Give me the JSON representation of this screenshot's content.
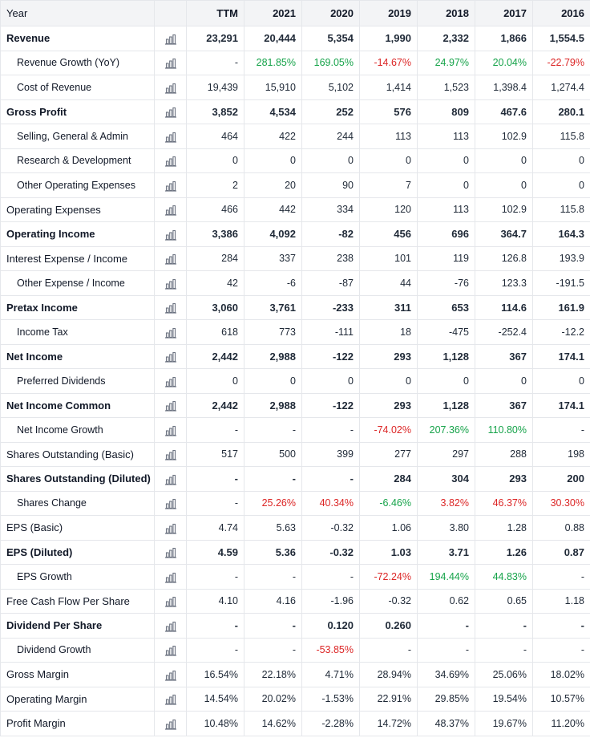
{
  "header": {
    "year_label": "Year",
    "columns": [
      "TTM",
      "2021",
      "2020",
      "2019",
      "2018",
      "2017",
      "2016"
    ]
  },
  "icon": "bar-chart-icon",
  "colors": {
    "positive": "#16a34a",
    "negative": "#dc2626"
  },
  "rows": [
    {
      "label": "Revenue",
      "bold": true,
      "indent": false,
      "values": [
        "23,291",
        "20,444",
        "5,354",
        "1,990",
        "2,332",
        "1,866",
        "1,554.5"
      ]
    },
    {
      "label": "Revenue Growth (YoY)",
      "bold": false,
      "indent": true,
      "values": [
        "-",
        "281.85%",
        "169.05%",
        "-14.67%",
        "24.97%",
        "20.04%",
        "-22.79%"
      ]
    },
    {
      "label": "Cost of Revenue",
      "bold": false,
      "indent": true,
      "values": [
        "19,439",
        "15,910",
        "5,102",
        "1,414",
        "1,523",
        "1,398.4",
        "1,274.4"
      ]
    },
    {
      "label": "Gross Profit",
      "bold": true,
      "indent": false,
      "values": [
        "3,852",
        "4,534",
        "252",
        "576",
        "809",
        "467.6",
        "280.1"
      ]
    },
    {
      "label": "Selling, General & Admin",
      "bold": false,
      "indent": true,
      "values": [
        "464",
        "422",
        "244",
        "113",
        "113",
        "102.9",
        "115.8"
      ]
    },
    {
      "label": "Research & Development",
      "bold": false,
      "indent": true,
      "values": [
        "0",
        "0",
        "0",
        "0",
        "0",
        "0",
        "0"
      ]
    },
    {
      "label": "Other Operating Expenses",
      "bold": false,
      "indent": true,
      "values": [
        "2",
        "20",
        "90",
        "7",
        "0",
        "0",
        "0"
      ]
    },
    {
      "label": "Operating Expenses",
      "bold": false,
      "indent": false,
      "values": [
        "466",
        "442",
        "334",
        "120",
        "113",
        "102.9",
        "115.8"
      ]
    },
    {
      "label": "Operating Income",
      "bold": true,
      "indent": false,
      "values": [
        "3,386",
        "4,092",
        "-82",
        "456",
        "696",
        "364.7",
        "164.3"
      ]
    },
    {
      "label": "Interest Expense / Income",
      "bold": false,
      "indent": false,
      "values": [
        "284",
        "337",
        "238",
        "101",
        "119",
        "126.8",
        "193.9"
      ]
    },
    {
      "label": "Other Expense / Income",
      "bold": false,
      "indent": true,
      "values": [
        "42",
        "-6",
        "-87",
        "44",
        "-76",
        "123.3",
        "-191.5"
      ]
    },
    {
      "label": "Pretax Income",
      "bold": true,
      "indent": false,
      "values": [
        "3,060",
        "3,761",
        "-233",
        "311",
        "653",
        "114.6",
        "161.9"
      ]
    },
    {
      "label": "Income Tax",
      "bold": false,
      "indent": true,
      "values": [
        "618",
        "773",
        "-111",
        "18",
        "-475",
        "-252.4",
        "-12.2"
      ]
    },
    {
      "label": "Net Income",
      "bold": true,
      "indent": false,
      "values": [
        "2,442",
        "2,988",
        "-122",
        "293",
        "1,128",
        "367",
        "174.1"
      ]
    },
    {
      "label": "Preferred Dividends",
      "bold": false,
      "indent": true,
      "values": [
        "0",
        "0",
        "0",
        "0",
        "0",
        "0",
        "0"
      ]
    },
    {
      "label": "Net Income Common",
      "bold": true,
      "indent": false,
      "values": [
        "2,442",
        "2,988",
        "-122",
        "293",
        "1,128",
        "367",
        "174.1"
      ]
    },
    {
      "label": "Net Income Growth",
      "bold": false,
      "indent": true,
      "values": [
        "-",
        "-",
        "-",
        "-74.02%",
        "207.36%",
        "110.80%",
        "-"
      ]
    },
    {
      "label": "Shares Outstanding (Basic)",
      "bold": false,
      "indent": false,
      "values": [
        "517",
        "500",
        "399",
        "277",
        "297",
        "288",
        "198"
      ]
    },
    {
      "label": "Shares Outstanding (Diluted)",
      "bold": true,
      "indent": false,
      "values": [
        "-",
        "-",
        "-",
        "284",
        "304",
        "293",
        "200"
      ]
    },
    {
      "label": "Shares Change",
      "bold": false,
      "indent": true,
      "values": [
        "-",
        "25.26%",
        "40.34%",
        "-6.46%",
        "3.82%",
        "46.37%",
        "30.30%"
      ]
    },
    {
      "label": "EPS (Basic)",
      "bold": false,
      "indent": false,
      "values": [
        "4.74",
        "5.63",
        "-0.32",
        "1.06",
        "3.80",
        "1.28",
        "0.88"
      ]
    },
    {
      "label": "EPS (Diluted)",
      "bold": true,
      "indent": false,
      "values": [
        "4.59",
        "5.36",
        "-0.32",
        "1.03",
        "3.71",
        "1.26",
        "0.87"
      ]
    },
    {
      "label": "EPS Growth",
      "bold": false,
      "indent": true,
      "values": [
        "-",
        "-",
        "-",
        "-72.24%",
        "194.44%",
        "44.83%",
        "-"
      ]
    },
    {
      "label": "Free Cash Flow Per Share",
      "bold": false,
      "indent": false,
      "values": [
        "4.10",
        "4.16",
        "-1.96",
        "-0.32",
        "0.62",
        "0.65",
        "1.18"
      ]
    },
    {
      "label": "Dividend Per Share",
      "bold": true,
      "indent": false,
      "values": [
        "-",
        "-",
        "0.120",
        "0.260",
        "-",
        "-",
        "-"
      ]
    },
    {
      "label": "Dividend Growth",
      "bold": false,
      "indent": true,
      "values": [
        "-",
        "-",
        "-53.85%",
        "-",
        "-",
        "-",
        "-"
      ]
    },
    {
      "label": "Gross Margin",
      "bold": false,
      "indent": false,
      "values": [
        "16.54%",
        "22.18%",
        "4.71%",
        "28.94%",
        "34.69%",
        "25.06%",
        "18.02%"
      ]
    },
    {
      "label": "Operating Margin",
      "bold": false,
      "indent": false,
      "values": [
        "14.54%",
        "20.02%",
        "-1.53%",
        "22.91%",
        "29.85%",
        "19.54%",
        "10.57%"
      ]
    },
    {
      "label": "Profit Margin",
      "bold": false,
      "indent": false,
      "values": [
        "10.48%",
        "14.62%",
        "-2.28%",
        "14.72%",
        "48.37%",
        "19.67%",
        "11.20%"
      ]
    }
  ],
  "colored_rows": {
    "Revenue Growth (YoY)": [
      "none",
      "pos",
      "pos",
      "neg",
      "pos",
      "pos",
      "neg"
    ],
    "Net Income Growth": [
      "none",
      "none",
      "none",
      "neg",
      "pos",
      "pos",
      "none"
    ],
    "Shares Change": [
      "none",
      "neg",
      "neg",
      "pos",
      "neg",
      "neg",
      "neg"
    ],
    "EPS Growth": [
      "none",
      "none",
      "none",
      "neg",
      "pos",
      "pos",
      "none"
    ],
    "Dividend Growth": [
      "none",
      "none",
      "neg",
      "none",
      "none",
      "none",
      "none"
    ]
  }
}
